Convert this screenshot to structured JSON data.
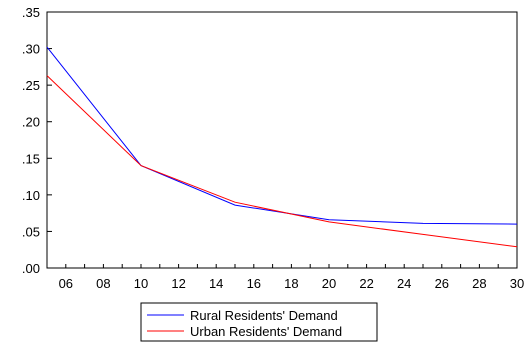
{
  "chart_data": {
    "type": "line",
    "x": [
      2005,
      2010,
      2015,
      2020,
      2025,
      2030
    ],
    "x_ticks": [
      2006,
      2008,
      2010,
      2012,
      2014,
      2016,
      2018,
      2020,
      2022,
      2024,
      2026,
      2028,
      2030
    ],
    "x_tick_labels": [
      "06",
      "08",
      "10",
      "12",
      "14",
      "16",
      "18",
      "20",
      "22",
      "24",
      "26",
      "28",
      "30"
    ],
    "xlim": [
      2005,
      2030
    ],
    "y_ticks": [
      0.0,
      0.05,
      0.1,
      0.15,
      0.2,
      0.25,
      0.3,
      0.35
    ],
    "y_tick_labels": [
      ".00",
      ".05",
      ".10",
      ".15",
      ".20",
      ".25",
      ".30",
      ".35"
    ],
    "ylim": [
      0.0,
      0.35
    ],
    "grid": false,
    "legend_position": "bottom-center",
    "series": [
      {
        "name": "Rural Residents' Demand",
        "color": "#0000ff",
        "values": [
          0.302,
          0.14,
          0.086,
          0.066,
          0.061,
          0.06
        ]
      },
      {
        "name": "Urban Residents' Demand",
        "color": "#ff0000",
        "values": [
          0.263,
          0.14,
          0.09,
          0.063,
          0.046,
          0.029
        ]
      }
    ]
  }
}
